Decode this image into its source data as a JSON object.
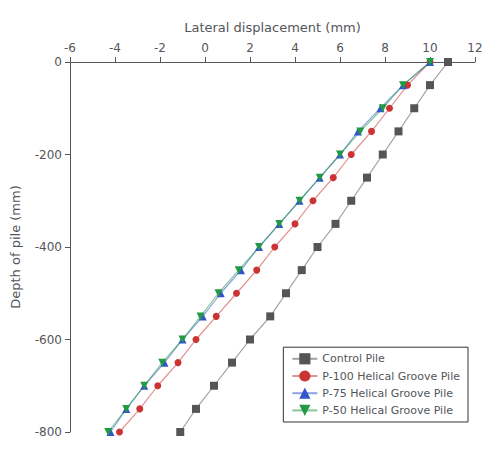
{
  "chart_data": {
    "type": "line",
    "xlabel": "Lateral displacement (mm)",
    "ylabel": "Depth of pile (mm)",
    "xlim": [
      -6,
      12
    ],
    "ylim": [
      -800,
      0
    ],
    "xticks": [
      -6,
      -4,
      -2,
      0,
      2,
      4,
      6,
      8,
      10,
      12
    ],
    "yticks": [
      0,
      -200,
      -400,
      -600,
      -800
    ],
    "grid": false,
    "legend": "lower right",
    "series": [
      {
        "name": "Control Pile",
        "color": "#555555",
        "marker": "square",
        "x": [
          10.8,
          10.0,
          9.3,
          8.6,
          7.9,
          7.2,
          6.5,
          5.8,
          5.0,
          4.3,
          3.6,
          2.9,
          2.0,
          1.2,
          0.4,
          -0.4,
          -1.1
        ],
        "values": [
          0,
          -50,
          -100,
          -150,
          -200,
          -250,
          -300,
          -350,
          -400,
          -450,
          -500,
          -550,
          -600,
          -650,
          -700,
          -750,
          -800
        ]
      },
      {
        "name": "P-100 Helical Groove Pile",
        "color": "#cc3333",
        "marker": "circle",
        "x": [
          10.0,
          9.0,
          8.2,
          7.4,
          6.5,
          5.7,
          4.8,
          4.0,
          3.1,
          2.3,
          1.4,
          0.5,
          -0.4,
          -1.2,
          -2.1,
          -2.9,
          -3.8
        ],
        "values": [
          0,
          -50,
          -100,
          -150,
          -200,
          -250,
          -300,
          -350,
          -400,
          -450,
          -500,
          -550,
          -600,
          -650,
          -700,
          -750,
          -800
        ]
      },
      {
        "name": "P-75 Helical Groove Pile",
        "color": "#3355cc",
        "marker": "triangle-up",
        "x": [
          10.0,
          8.8,
          7.8,
          6.8,
          6.0,
          5.1,
          4.2,
          3.3,
          2.4,
          1.6,
          0.7,
          -0.1,
          -1.0,
          -1.8,
          -2.7,
          -3.5,
          -4.2
        ],
        "values": [
          0,
          -50,
          -100,
          -150,
          -200,
          -250,
          -300,
          -350,
          -400,
          -450,
          -500,
          -550,
          -600,
          -650,
          -700,
          -750,
          -800
        ]
      },
      {
        "name": "P-50 Helical Groove Pile",
        "color": "#229944",
        "marker": "triangle-down",
        "x": [
          10.0,
          8.8,
          7.9,
          6.9,
          6.0,
          5.1,
          4.2,
          3.3,
          2.4,
          1.5,
          0.6,
          -0.2,
          -1.0,
          -1.9,
          -2.7,
          -3.5,
          -4.3
        ],
        "values": [
          0,
          -50,
          -100,
          -150,
          -200,
          -250,
          -300,
          -350,
          -400,
          -450,
          -500,
          -550,
          -600,
          -650,
          -700,
          -750,
          -800
        ]
      }
    ]
  }
}
